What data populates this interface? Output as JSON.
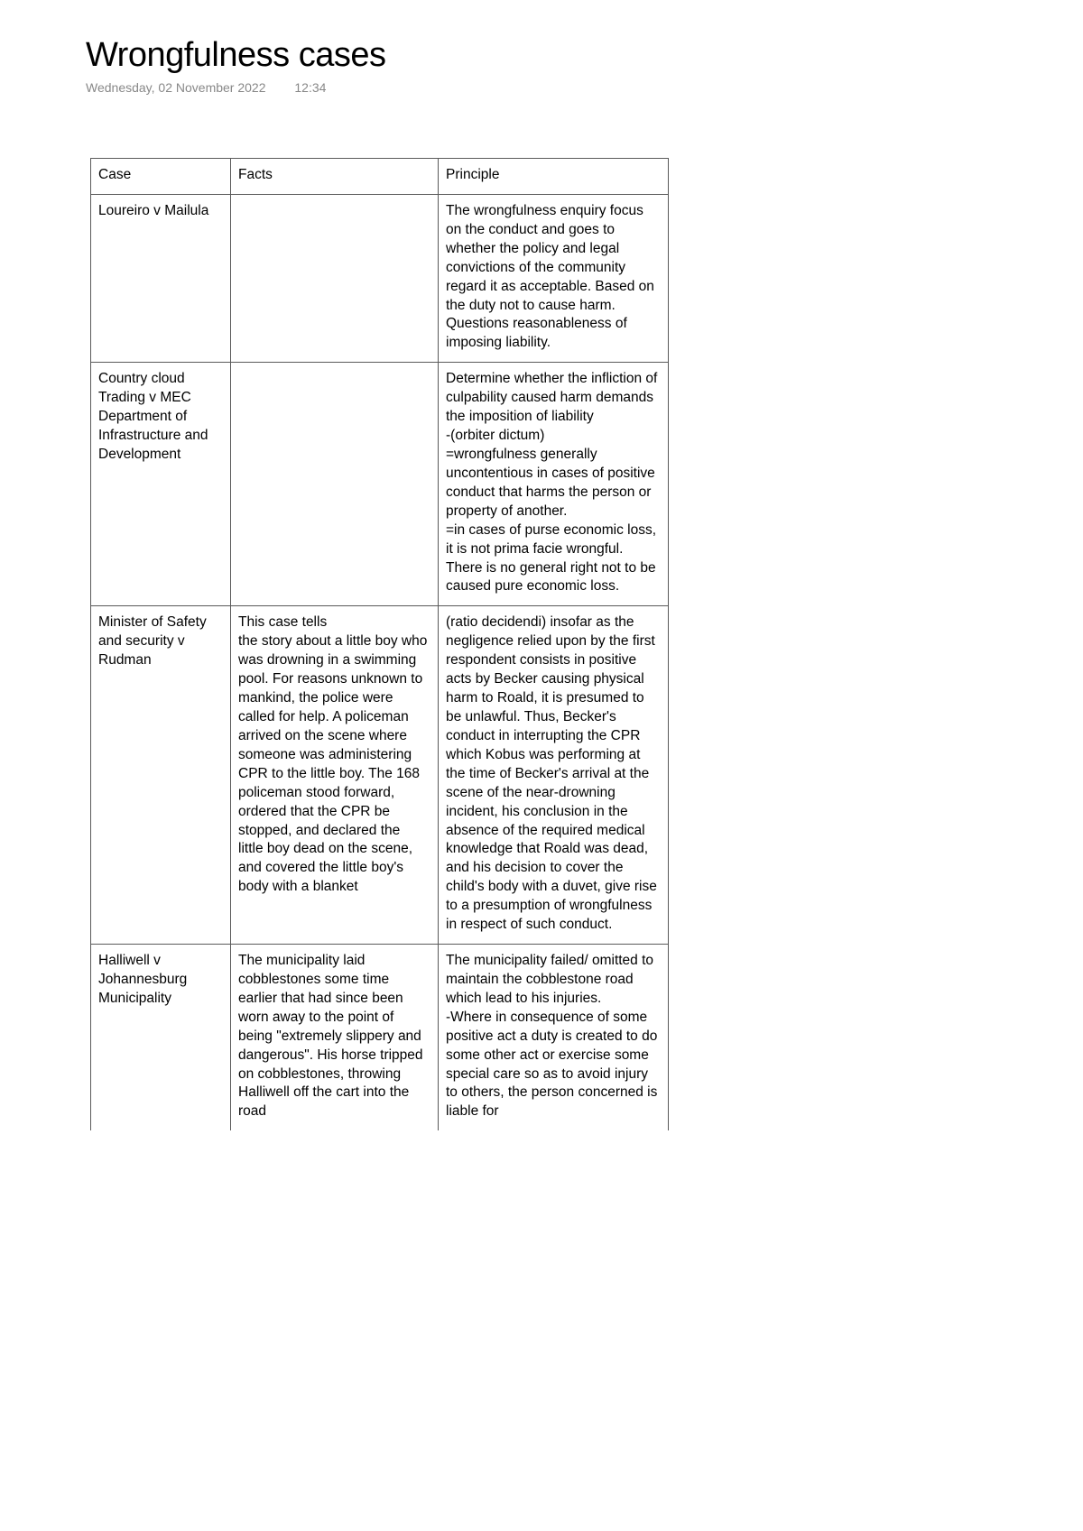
{
  "title": "Wrongfulness cases",
  "meta": {
    "date": "Wednesday, 02 November 2022",
    "time": "12:34"
  },
  "columns": [
    "Case",
    "Facts",
    "Principle"
  ],
  "rows": [
    {
      "case": "Loureiro v Mailula",
      "facts": "",
      "principle": "The wrongfulness enquiry focus on the conduct and goes to whether the policy and legal convictions of the community regard it as acceptable. Based on the duty not to cause harm. Questions reasonableness of imposing liability."
    },
    {
      "case": "Country cloud Trading v MEC Department of Infrastructure and Development",
      "facts": "",
      "principle": "Determine whether the infliction of culpability caused harm demands the imposition of liability\n-(orbiter dictum)\n=wrongfulness generally uncontentious in cases of positive conduct that harms the person or property of another.\n=in cases of purse economic loss, it is not prima facie wrongful. There is no general right not to be caused pure economic loss."
    },
    {
      "case": "Minister of Safety and security v Rudman",
      "facts": "This case tells\nthe story about a little boy who was drowning in a swimming pool. For reasons unknown to mankind, the police were called for help. A policeman arrived on the scene where someone was administering CPR to the little boy. The 168 policeman stood forward, ordered that the CPR be stopped, and declared the\nlittle boy dead on the scene, and covered the little boy's body with a blanket",
      "principle": " (ratio decidendi) insofar as the negligence relied upon by the first respondent consists in positive acts by Becker causing physical harm to Roald, it is presumed to be unlawful. Thus, Becker's conduct in interrupting the CPR which Kobus was  performing at the time of Becker's arrival at the scene of the near-drowning incident, his conclusion in the absence of the required medical knowledge that Roald was dead, and his decision to cover the child's body with a duvet, give rise to a presumption of wrongfulness in respect of such conduct."
    },
    {
      "case": "Halliwell v Johannesburg Municipality",
      "facts": "The municipality laid cobblestones some time earlier that had since been worn away to the point of being \"extremely slippery and dangerous\". His horse tripped on cobblestones, throwing Halliwell off the cart into the road",
      "principle": "The municipality failed/ omitted to maintain the cobblestone road which lead to his injuries.\n-Where in consequence of some positive act a duty is created to do some other act or exercise some special care so as to avoid injury to others, the person concerned is liable for"
    }
  ]
}
